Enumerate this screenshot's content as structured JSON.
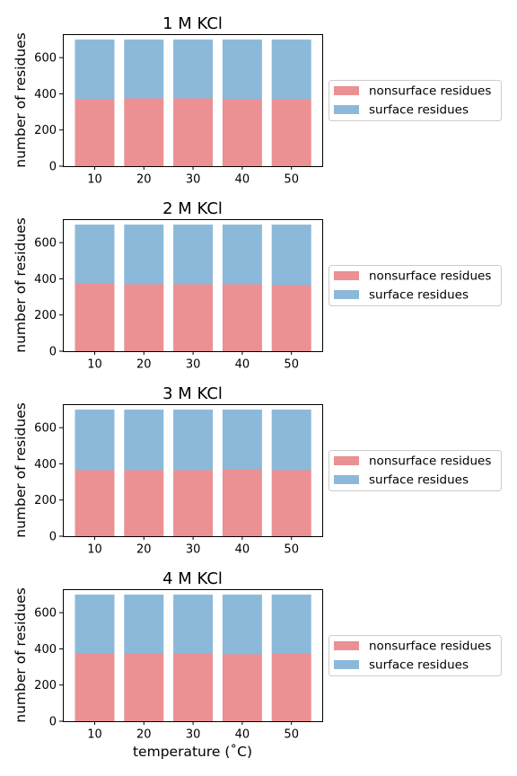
{
  "colors": {
    "nonsurface": "#eb9093",
    "surface": "#8cb9d9",
    "axis": "#000000",
    "legend_border": "#cccccc"
  },
  "xlabel": "temperature (˚C)",
  "chart_data": [
    {
      "type": "bar",
      "stacked": true,
      "title": "1 M KCl",
      "ylabel": "number of residues",
      "categories": [
        "10",
        "20",
        "30",
        "40",
        "50"
      ],
      "ylim": [
        0,
        730
      ],
      "yticks": [
        0,
        200,
        400,
        600
      ],
      "legend": "center-left outside right",
      "series": [
        {
          "name": "nonsurface residues",
          "values": [
            370,
            375,
            375,
            370,
            370
          ]
        },
        {
          "name": "surface residues",
          "values": [
            330,
            325,
            325,
            330,
            330
          ]
        }
      ]
    },
    {
      "type": "bar",
      "stacked": true,
      "title": "2 M KCl",
      "ylabel": "number of residues",
      "categories": [
        "10",
        "20",
        "30",
        "40",
        "50"
      ],
      "ylim": [
        0,
        730
      ],
      "yticks": [
        0,
        200,
        400,
        600
      ],
      "legend": "center-left outside right",
      "series": [
        {
          "name": "nonsurface residues",
          "values": [
            375,
            370,
            370,
            370,
            365
          ]
        },
        {
          "name": "surface residues",
          "values": [
            325,
            330,
            330,
            330,
            335
          ]
        }
      ]
    },
    {
      "type": "bar",
      "stacked": true,
      "title": "3 M KCl",
      "ylabel": "number of residues",
      "categories": [
        "10",
        "20",
        "30",
        "40",
        "50"
      ],
      "ylim": [
        0,
        730
      ],
      "yticks": [
        0,
        200,
        400,
        600
      ],
      "legend": "center-left outside right",
      "series": [
        {
          "name": "nonsurface residues",
          "values": [
            365,
            365,
            365,
            370,
            365
          ]
        },
        {
          "name": "surface residues",
          "values": [
            335,
            335,
            335,
            330,
            335
          ]
        }
      ]
    },
    {
      "type": "bar",
      "stacked": true,
      "title": "4 M KCl",
      "ylabel": "number of residues",
      "xlabel": "temperature (˚C)",
      "categories": [
        "10",
        "20",
        "30",
        "40",
        "50"
      ],
      "ylim": [
        0,
        730
      ],
      "yticks": [
        0,
        200,
        400,
        600
      ],
      "legend": "center-left outside right",
      "series": [
        {
          "name": "nonsurface residues",
          "values": [
            375,
            375,
            375,
            370,
            375
          ]
        },
        {
          "name": "surface residues",
          "values": [
            325,
            325,
            325,
            330,
            325
          ]
        }
      ]
    }
  ]
}
